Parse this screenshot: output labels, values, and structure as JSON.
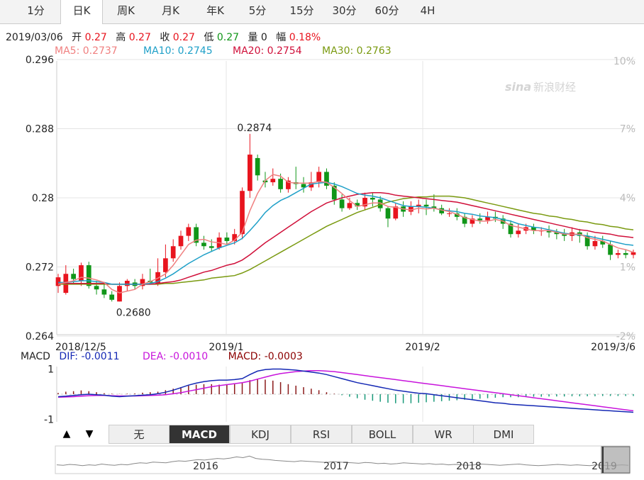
{
  "tabs": [
    "1分",
    "日K",
    "周K",
    "月K",
    "年K",
    "5分",
    "15分",
    "30分",
    "60分",
    "4H"
  ],
  "active_tab": 1,
  "quote": {
    "date": "2019/03/06",
    "open_label": "开",
    "open": "0.27",
    "high_label": "高",
    "high": "0.27",
    "close_label": "收",
    "close": "0.27",
    "low_label": "低",
    "low": "0.27",
    "vol_label": "量",
    "vol": "0",
    "amp_label": "幅",
    "amp": "0.18%"
  },
  "ma_legend": [
    {
      "text": "MA5: 0.2737",
      "color": "#f08080"
    },
    {
      "text": "MA10: 0.2745",
      "color": "#1fa0c8"
    },
    {
      "text": "MA20: 0.2754",
      "color": "#d0103a"
    },
    {
      "text": "MA30: 0.2763",
      "color": "#7a9a10"
    }
  ],
  "watermark": "新浪财经",
  "watermark_logo": "sina",
  "macd_legend": {
    "name": "MACD",
    "dif": "DIF: -0.0011",
    "dea": "DEA: -0.0010",
    "macd": "MACD: -0.0003"
  },
  "indicator_tabs": [
    "无",
    "MACD",
    "KDJ",
    "RSI",
    "BOLL",
    "WR",
    "DMI"
  ],
  "active_indicator": 1,
  "nav_arrows": [
    "▲",
    "▼"
  ],
  "colors": {
    "up": "#e8141e",
    "down": "#109618",
    "ma5": "#f08080",
    "ma10": "#1fa0c8",
    "ma20": "#d0103a",
    "ma30": "#7a9a10",
    "dif": "#1428b4",
    "dea": "#c814dc"
  },
  "chart_data": {
    "type": "candlestick",
    "y_ticks": [
      "0.296",
      "0.288",
      "0.28",
      "0.272",
      "0.264"
    ],
    "ylim": [
      0.264,
      0.296
    ],
    "pct_ticks": [
      "10%",
      "7%",
      "4%",
      "1%",
      "-2%"
    ],
    "x_ticks": [
      "2018/12/5",
      "2019/1",
      "2019/2",
      "2019/3/6"
    ],
    "annotations": [
      {
        "text": "0.2874",
        "value": 0.2874
      },
      {
        "text": "0.2680",
        "value": 0.268
      }
    ],
    "candles": [
      [
        0.2698,
        0.2708,
        0.2712,
        0.269
      ],
      [
        0.269,
        0.2712,
        0.2722,
        0.2688
      ],
      [
        0.2712,
        0.2706,
        0.2718,
        0.27
      ],
      [
        0.2704,
        0.2722,
        0.2725,
        0.2698
      ],
      [
        0.2722,
        0.2698,
        0.2726,
        0.2695
      ],
      [
        0.2698,
        0.2694,
        0.2704,
        0.2688
      ],
      [
        0.2694,
        0.2688,
        0.27,
        0.2684
      ],
      [
        0.2688,
        0.2682,
        0.2692,
        0.268
      ],
      [
        0.268,
        0.2698,
        0.2702,
        0.268
      ],
      [
        0.2698,
        0.2704,
        0.2706,
        0.2692
      ],
      [
        0.2702,
        0.2698,
        0.2706,
        0.2694
      ],
      [
        0.2698,
        0.2706,
        0.2712,
        0.2694
      ],
      [
        0.2704,
        0.2702,
        0.2718,
        0.27
      ],
      [
        0.27,
        0.2714,
        0.273,
        0.2698
      ],
      [
        0.2714,
        0.273,
        0.2746,
        0.2708
      ],
      [
        0.273,
        0.2744,
        0.2752,
        0.2726
      ],
      [
        0.2744,
        0.2756,
        0.2762,
        0.274
      ],
      [
        0.2756,
        0.2766,
        0.277,
        0.275
      ],
      [
        0.2766,
        0.2748,
        0.277,
        0.2744
      ],
      [
        0.2748,
        0.2744,
        0.2756,
        0.274
      ],
      [
        0.2744,
        0.2742,
        0.2752,
        0.2738
      ],
      [
        0.2742,
        0.2754,
        0.276,
        0.274
      ],
      [
        0.2754,
        0.275,
        0.276,
        0.2746
      ],
      [
        0.275,
        0.2758,
        0.2764,
        0.2746
      ],
      [
        0.2758,
        0.2808,
        0.2812,
        0.2752
      ],
      [
        0.2808,
        0.285,
        0.2874,
        0.28
      ],
      [
        0.2846,
        0.2826,
        0.285,
        0.282
      ],
      [
        0.282,
        0.2818,
        0.283,
        0.2812
      ],
      [
        0.2818,
        0.2822,
        0.2834,
        0.2814
      ],
      [
        0.2822,
        0.281,
        0.2828,
        0.2806
      ],
      [
        0.281,
        0.282,
        0.2824,
        0.2806
      ],
      [
        0.2818,
        0.2816,
        0.2836,
        0.281
      ],
      [
        0.2816,
        0.2812,
        0.2824,
        0.2806
      ],
      [
        0.2812,
        0.2818,
        0.283,
        0.2808
      ],
      [
        0.2818,
        0.283,
        0.2836,
        0.2812
      ],
      [
        0.283,
        0.2814,
        0.2834,
        0.281
      ],
      [
        0.2814,
        0.2798,
        0.2818,
        0.2792
      ],
      [
        0.2798,
        0.2788,
        0.2804,
        0.2784
      ],
      [
        0.2788,
        0.2794,
        0.28,
        0.2786
      ],
      [
        0.2794,
        0.279,
        0.2798,
        0.2786
      ],
      [
        0.279,
        0.28,
        0.2806,
        0.2786
      ],
      [
        0.28,
        0.2798,
        0.2806,
        0.279
      ],
      [
        0.2798,
        0.2788,
        0.2802,
        0.2784
      ],
      [
        0.2788,
        0.2776,
        0.279,
        0.2766
      ],
      [
        0.2776,
        0.279,
        0.2794,
        0.2774
      ],
      [
        0.279,
        0.2784,
        0.2796,
        0.2778
      ],
      [
        0.2784,
        0.279,
        0.2796,
        0.278
      ],
      [
        0.279,
        0.2792,
        0.2798,
        0.2782
      ],
      [
        0.2792,
        0.279,
        0.2798,
        0.278
      ],
      [
        0.279,
        0.2788,
        0.2804,
        0.2784
      ],
      [
        0.2788,
        0.2782,
        0.2792,
        0.278
      ],
      [
        0.2782,
        0.2782,
        0.2788,
        0.2778
      ],
      [
        0.2782,
        0.2778,
        0.2788,
        0.2774
      ],
      [
        0.2778,
        0.277,
        0.2782,
        0.2766
      ],
      [
        0.277,
        0.2776,
        0.278,
        0.2766
      ],
      [
        0.2776,
        0.2774,
        0.2782,
        0.277
      ],
      [
        0.2774,
        0.2778,
        0.2784,
        0.277
      ],
      [
        0.2778,
        0.2776,
        0.2784,
        0.2772
      ],
      [
        0.2776,
        0.277,
        0.278,
        0.2764
      ],
      [
        0.277,
        0.2758,
        0.2774,
        0.2754
      ],
      [
        0.2758,
        0.2762,
        0.277,
        0.2754
      ],
      [
        0.2762,
        0.2766,
        0.277,
        0.2758
      ],
      [
        0.2766,
        0.2762,
        0.277,
        0.2758
      ],
      [
        0.2762,
        0.2762,
        0.2766,
        0.2756
      ],
      [
        0.2762,
        0.276,
        0.2768,
        0.2754
      ],
      [
        0.276,
        0.2758,
        0.2764,
        0.2752
      ],
      [
        0.2758,
        0.2756,
        0.2764,
        0.275
      ],
      [
        0.2756,
        0.276,
        0.2766,
        0.275
      ],
      [
        0.276,
        0.2756,
        0.2764,
        0.2748
      ],
      [
        0.2756,
        0.2744,
        0.276,
        0.274
      ],
      [
        0.2744,
        0.275,
        0.2756,
        0.274
      ],
      [
        0.275,
        0.2746,
        0.2756,
        0.2742
      ],
      [
        0.2746,
        0.2734,
        0.275,
        0.2728
      ],
      [
        0.2734,
        0.2736,
        0.274,
        0.273
      ],
      [
        0.2736,
        0.2734,
        0.274,
        0.273
      ],
      [
        0.2734,
        0.2737,
        0.274,
        0.273
      ]
    ],
    "ma5": [
      0.27,
      0.2702,
      0.2704,
      0.2708,
      0.2707,
      0.2705,
      0.2702,
      0.2694,
      0.269,
      0.2692,
      0.2694,
      0.27,
      0.2703,
      0.2707,
      0.2712,
      0.2722,
      0.2734,
      0.2746,
      0.2751,
      0.2752,
      0.2749,
      0.2748,
      0.2746,
      0.2751,
      0.276,
      0.2785,
      0.2805,
      0.282,
      0.2827,
      0.2825,
      0.2818,
      0.2817,
      0.2817,
      0.2817,
      0.2819,
      0.2818,
      0.2812,
      0.2805,
      0.2797,
      0.279,
      0.2792,
      0.2794,
      0.2794,
      0.279,
      0.2789,
      0.2787,
      0.2786,
      0.2788,
      0.2787,
      0.2788,
      0.2786,
      0.2784,
      0.2781,
      0.2777,
      0.2775,
      0.2773,
      0.2773,
      0.2775,
      0.2773,
      0.2768,
      0.2766,
      0.2764,
      0.2762,
      0.2762,
      0.2762,
      0.276,
      0.2758,
      0.2758,
      0.2758,
      0.2754,
      0.2752,
      0.275,
      0.2746,
      0.2742,
      0.274,
      0.2737
    ],
    "ma10": [
      0.2702,
      0.2702,
      0.2703,
      0.2704,
      0.2704,
      0.2703,
      0.2702,
      0.27,
      0.27,
      0.27,
      0.27,
      0.27,
      0.2701,
      0.2703,
      0.2707,
      0.2712,
      0.2718,
      0.2724,
      0.2729,
      0.2734,
      0.2738,
      0.2742,
      0.2745,
      0.2748,
      0.2753,
      0.2762,
      0.2772,
      0.2783,
      0.2791,
      0.2797,
      0.2801,
      0.2806,
      0.2811,
      0.2816,
      0.2817,
      0.2818,
      0.2816,
      0.2813,
      0.2809,
      0.2805,
      0.2803,
      0.2802,
      0.28,
      0.2797,
      0.2794,
      0.2791,
      0.279,
      0.279,
      0.2789,
      0.2788,
      0.2786,
      0.2785,
      0.2784,
      0.2782,
      0.2781,
      0.2779,
      0.2778,
      0.2777,
      0.2775,
      0.2773,
      0.277,
      0.2768,
      0.2766,
      0.2765,
      0.2763,
      0.2761,
      0.2759,
      0.2758,
      0.2757,
      0.2756,
      0.2754,
      0.2752,
      0.275,
      0.2748,
      0.2746,
      0.2745
    ],
    "ma20": [
      0.2701,
      0.2701,
      0.2701,
      0.2701,
      0.2701,
      0.2701,
      0.2701,
      0.27,
      0.27,
      0.27,
      0.27,
      0.27,
      0.27,
      0.2701,
      0.2702,
      0.2703,
      0.2705,
      0.2708,
      0.2711,
      0.2714,
      0.2716,
      0.2719,
      0.2722,
      0.2724,
      0.2728,
      0.2734,
      0.2741,
      0.2748,
      0.2754,
      0.276,
      0.2766,
      0.2772,
      0.2778,
      0.2784,
      0.2789,
      0.2794,
      0.2797,
      0.28,
      0.2802,
      0.2804,
      0.2805,
      0.2806,
      0.2806,
      0.2805,
      0.2803,
      0.2802,
      0.2801,
      0.28,
      0.2799,
      0.2798,
      0.2797,
      0.2796,
      0.2795,
      0.2793,
      0.2791,
      0.2789,
      0.2787,
      0.2785,
      0.2783,
      0.2781,
      0.2779,
      0.2777,
      0.2775,
      0.2773,
      0.2771,
      0.2769,
      0.2767,
      0.2765,
      0.2763,
      0.2762,
      0.276,
      0.2759,
      0.2758,
      0.2756,
      0.2755,
      0.2754
    ],
    "ma30": [
      0.27,
      0.27,
      0.27,
      0.27,
      0.27,
      0.27,
      0.27,
      0.27,
      0.27,
      0.27,
      0.27,
      0.27,
      0.27,
      0.27,
      0.2701,
      0.2701,
      0.2702,
      0.2703,
      0.2704,
      0.2705,
      0.2707,
      0.2708,
      0.2709,
      0.271,
      0.2713,
      0.2717,
      0.2722,
      0.2727,
      0.2732,
      0.2737,
      0.2742,
      0.2747,
      0.2752,
      0.2757,
      0.2762,
      0.2767,
      0.2771,
      0.2775,
      0.2779,
      0.2783,
      0.2786,
      0.2789,
      0.2792,
      0.2795,
      0.2797,
      0.2799,
      0.28,
      0.2801,
      0.2801,
      0.2802,
      0.2802,
      0.2802,
      0.2801,
      0.28,
      0.2798,
      0.2796,
      0.2794,
      0.2792,
      0.279,
      0.2788,
      0.2786,
      0.2784,
      0.2782,
      0.2781,
      0.2779,
      0.2778,
      0.2776,
      0.2775,
      0.2773,
      0.2772,
      0.277,
      0.2769,
      0.2767,
      0.2766,
      0.2764,
      0.2763
    ],
    "macd_y_ticks": [
      "1",
      "-1"
    ],
    "macd_ylim": [
      -1.1,
      1.1
    ],
    "macd_bars": [
      0.05,
      0.1,
      0.12,
      0.15,
      0.12,
      0.08,
      0.04,
      0.02,
      0.01,
      0.02,
      0.03,
      0.06,
      0.08,
      0.1,
      0.16,
      0.22,
      0.28,
      0.34,
      0.38,
      0.4,
      0.4,
      0.38,
      0.38,
      0.4,
      0.44,
      0.56,
      0.62,
      0.58,
      0.54,
      0.48,
      0.4,
      0.34,
      0.28,
      0.22,
      0.16,
      0.08,
      0.02,
      -0.04,
      -0.1,
      -0.16,
      -0.22,
      -0.26,
      -0.3,
      -0.34,
      -0.36,
      -0.36,
      -0.36,
      -0.34,
      -0.32,
      -0.3,
      -0.28,
      -0.26,
      -0.24,
      -0.22,
      -0.2,
      -0.18,
      -0.16,
      -0.14,
      -0.12,
      -0.12,
      -0.12,
      -0.1,
      -0.1,
      -0.1,
      -0.09,
      -0.09,
      -0.09,
      -0.08,
      -0.08,
      -0.08,
      -0.08,
      -0.07,
      -0.07,
      -0.07,
      -0.07,
      -0.07
    ],
    "macd_dif": [
      -0.1,
      -0.08,
      -0.05,
      -0.02,
      0.0,
      -0.02,
      -0.04,
      -0.08,
      -0.1,
      -0.08,
      -0.06,
      -0.04,
      -0.02,
      0.02,
      0.08,
      0.16,
      0.26,
      0.36,
      0.44,
      0.5,
      0.54,
      0.56,
      0.56,
      0.58,
      0.62,
      0.78,
      0.92,
      0.98,
      1.0,
      1.0,
      0.98,
      0.96,
      0.92,
      0.88,
      0.84,
      0.78,
      0.7,
      0.62,
      0.54,
      0.46,
      0.4,
      0.34,
      0.28,
      0.22,
      0.16,
      0.12,
      0.08,
      0.04,
      0.02,
      -0.02,
      -0.06,
      -0.1,
      -0.14,
      -0.18,
      -0.22,
      -0.26,
      -0.3,
      -0.34,
      -0.36,
      -0.4,
      -0.42,
      -0.44,
      -0.46,
      -0.48,
      -0.5,
      -0.52,
      -0.54,
      -0.56,
      -0.58,
      -0.6,
      -0.62,
      -0.64,
      -0.66,
      -0.68,
      -0.7,
      -0.72
    ],
    "macd_dea": [
      -0.12,
      -0.11,
      -0.1,
      -0.08,
      -0.06,
      -0.05,
      -0.05,
      -0.06,
      -0.07,
      -0.07,
      -0.07,
      -0.06,
      -0.05,
      -0.04,
      -0.02,
      0.02,
      0.06,
      0.12,
      0.18,
      0.24,
      0.3,
      0.34,
      0.38,
      0.42,
      0.46,
      0.52,
      0.6,
      0.68,
      0.76,
      0.82,
      0.86,
      0.9,
      0.92,
      0.94,
      0.94,
      0.92,
      0.9,
      0.86,
      0.82,
      0.78,
      0.74,
      0.7,
      0.66,
      0.62,
      0.58,
      0.54,
      0.5,
      0.46,
      0.42,
      0.38,
      0.34,
      0.3,
      0.26,
      0.22,
      0.18,
      0.14,
      0.1,
      0.06,
      0.02,
      -0.02,
      -0.06,
      -0.1,
      -0.14,
      -0.18,
      -0.22,
      -0.26,
      -0.3,
      -0.34,
      -0.38,
      -0.42,
      -0.46,
      -0.5,
      -0.54,
      -0.58,
      -0.62,
      -0.66
    ],
    "overview_labels": [
      "2016",
      "2017",
      "2018",
      "2019"
    ],
    "overview_series": [
      0.3,
      0.28,
      0.32,
      0.3,
      0.26,
      0.3,
      0.28,
      0.34,
      0.3,
      0.28,
      0.32,
      0.3,
      0.36,
      0.4,
      0.38,
      0.44,
      0.42,
      0.4,
      0.46,
      0.5,
      0.48,
      0.52,
      0.56,
      0.54,
      0.58,
      0.62,
      0.6,
      0.64,
      0.7,
      0.66,
      0.74,
      0.62,
      0.58,
      0.56,
      0.52,
      0.5,
      0.48,
      0.46,
      0.5,
      0.48,
      0.46,
      0.44,
      0.42,
      0.46,
      0.44,
      0.42,
      0.4,
      0.38,
      0.42,
      0.4,
      0.36,
      0.38,
      0.34,
      0.36,
      0.4,
      0.38,
      0.36,
      0.34,
      0.36,
      0.32,
      0.34,
      0.3,
      0.32,
      0.3,
      0.28,
      0.3,
      0.34,
      0.32,
      0.3,
      0.28,
      0.3,
      0.32,
      0.34,
      0.3,
      0.28,
      0.26,
      0.28,
      0.3,
      0.32,
      0.3,
      0.28,
      0.3,
      0.28,
      0.26,
      0.3,
      0.28,
      0.26,
      0.28,
      0.3,
      0.28
    ]
  }
}
